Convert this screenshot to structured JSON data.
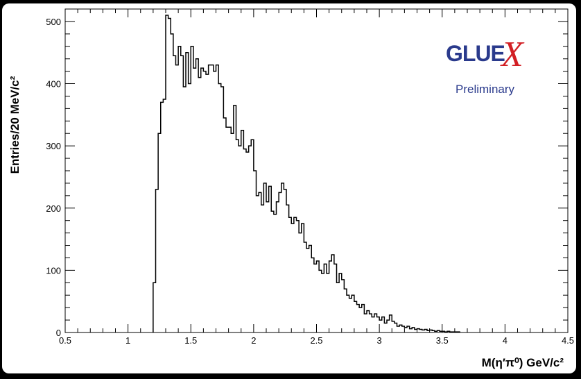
{
  "chart_data": {
    "type": "histogram",
    "xlabel": "M(η′π⁰) GeV/c²",
    "ylabel": "Entries/20 MeV/c²",
    "xlim": [
      0.5,
      4.5
    ],
    "ylim": [
      0,
      520
    ],
    "bin_width": 0.02,
    "x_ticks": [
      "0.5",
      "1",
      "1.5",
      "2",
      "2.5",
      "3",
      "3.5",
      "4",
      "4.5"
    ],
    "y_ticks": [
      "0",
      "100",
      "200",
      "300",
      "400",
      "500"
    ],
    "bins": [
      [
        1.21,
        80
      ],
      [
        1.23,
        230
      ],
      [
        1.25,
        320
      ],
      [
        1.27,
        370
      ],
      [
        1.29,
        375
      ],
      [
        1.31,
        510
      ],
      [
        1.33,
        505
      ],
      [
        1.35,
        480
      ],
      [
        1.37,
        445
      ],
      [
        1.39,
        430
      ],
      [
        1.41,
        460
      ],
      [
        1.43,
        445
      ],
      [
        1.45,
        395
      ],
      [
        1.47,
        450
      ],
      [
        1.49,
        400
      ],
      [
        1.51,
        460
      ],
      [
        1.53,
        425
      ],
      [
        1.55,
        440
      ],
      [
        1.57,
        410
      ],
      [
        1.59,
        425
      ],
      [
        1.61,
        420
      ],
      [
        1.63,
        415
      ],
      [
        1.65,
        430
      ],
      [
        1.67,
        430
      ],
      [
        1.69,
        420
      ],
      [
        1.71,
        430
      ],
      [
        1.73,
        400
      ],
      [
        1.75,
        395
      ],
      [
        1.77,
        345
      ],
      [
        1.79,
        330
      ],
      [
        1.81,
        330
      ],
      [
        1.83,
        320
      ],
      [
        1.85,
        365
      ],
      [
        1.87,
        310
      ],
      [
        1.89,
        300
      ],
      [
        1.91,
        325
      ],
      [
        1.93,
        295
      ],
      [
        1.95,
        290
      ],
      [
        1.97,
        300
      ],
      [
        1.99,
        310
      ],
      [
        2.01,
        260
      ],
      [
        2.03,
        220
      ],
      [
        2.05,
        225
      ],
      [
        2.07,
        205
      ],
      [
        2.09,
        240
      ],
      [
        2.11,
        210
      ],
      [
        2.13,
        235
      ],
      [
        2.15,
        195
      ],
      [
        2.17,
        190
      ],
      [
        2.19,
        210
      ],
      [
        2.21,
        225
      ],
      [
        2.23,
        240
      ],
      [
        2.25,
        230
      ],
      [
        2.27,
        205
      ],
      [
        2.29,
        185
      ],
      [
        2.31,
        175
      ],
      [
        2.33,
        185
      ],
      [
        2.35,
        180
      ],
      [
        2.37,
        160
      ],
      [
        2.39,
        175
      ],
      [
        2.41,
        145
      ],
      [
        2.43,
        135
      ],
      [
        2.45,
        140
      ],
      [
        2.47,
        120
      ],
      [
        2.49,
        110
      ],
      [
        2.51,
        115
      ],
      [
        2.53,
        100
      ],
      [
        2.55,
        95
      ],
      [
        2.57,
        110
      ],
      [
        2.59,
        95
      ],
      [
        2.61,
        115
      ],
      [
        2.63,
        125
      ],
      [
        2.65,
        110
      ],
      [
        2.67,
        80
      ],
      [
        2.69,
        95
      ],
      [
        2.71,
        85
      ],
      [
        2.73,
        70
      ],
      [
        2.75,
        60
      ],
      [
        2.77,
        55
      ],
      [
        2.79,
        60
      ],
      [
        2.81,
        50
      ],
      [
        2.83,
        45
      ],
      [
        2.85,
        40
      ],
      [
        2.87,
        45
      ],
      [
        2.89,
        30
      ],
      [
        2.91,
        35
      ],
      [
        2.93,
        30
      ],
      [
        2.95,
        25
      ],
      [
        2.97,
        30
      ],
      [
        2.99,
        25
      ],
      [
        3.01,
        20
      ],
      [
        3.03,
        25
      ],
      [
        3.05,
        15
      ],
      [
        3.07,
        20
      ],
      [
        3.09,
        28
      ],
      [
        3.11,
        18
      ],
      [
        3.13,
        15
      ],
      [
        3.15,
        10
      ],
      [
        3.17,
        12
      ],
      [
        3.19,
        10
      ],
      [
        3.21,
        8
      ],
      [
        3.23,
        10
      ],
      [
        3.25,
        6
      ],
      [
        3.27,
        8
      ],
      [
        3.29,
        5
      ],
      [
        3.31,
        6
      ],
      [
        3.33,
        5
      ],
      [
        3.35,
        4
      ],
      [
        3.37,
        5
      ],
      [
        3.39,
        3
      ],
      [
        3.41,
        4
      ],
      [
        3.43,
        3
      ],
      [
        3.45,
        2
      ],
      [
        3.47,
        3
      ],
      [
        3.49,
        2
      ],
      [
        3.51,
        2
      ],
      [
        3.53,
        1
      ],
      [
        3.55,
        2
      ],
      [
        3.57,
        1
      ],
      [
        3.59,
        1
      ],
      [
        3.61,
        1
      ],
      [
        3.63,
        1
      ]
    ],
    "grid": false
  },
  "logo": {
    "word": "GLUE",
    "x_letter": "X",
    "subtitle": "Preliminary",
    "color_primary": "#2a3a8c",
    "color_accent": "#d21f24"
  }
}
